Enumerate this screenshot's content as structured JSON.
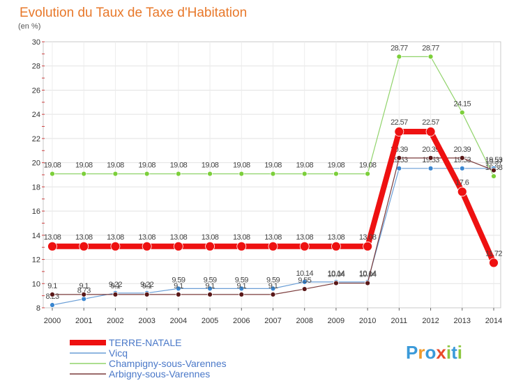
{
  "title": "Evolution du Taux de Taxe d'Habitation",
  "subtitle": "(en %)",
  "logo": {
    "letters": [
      "P",
      "r",
      "o",
      "x",
      "i",
      "t",
      "i"
    ],
    "colors": [
      "#3b9ad9",
      "#f09a2a",
      "#3b9ad9",
      "#e84a2a",
      "#8cc63f",
      "#3b9ad9",
      "#8cc63f"
    ]
  },
  "chart_data": {
    "type": "line",
    "x": [
      "2000",
      "2001",
      "2002",
      "2003",
      "2004",
      "2005",
      "2006",
      "2007",
      "2008",
      "2009",
      "2010",
      "2011",
      "2012",
      "2013",
      "2014"
    ],
    "ylim": [
      8,
      30
    ],
    "yticks": [
      "8",
      "10",
      "12",
      "14",
      "16",
      "18",
      "20",
      "22",
      "24",
      "26",
      "28",
      "30"
    ],
    "grid": true,
    "legend": "bottom-left",
    "series": [
      {
        "name": "Champigny-sous-Varennes",
        "color": "#90d36a",
        "marker": "#7ccf3a",
        "width": 1.2,
        "radius": 3.5,
        "values": [
          19.08,
          19.08,
          19.08,
          19.08,
          19.08,
          19.08,
          19.08,
          19.08,
          19.08,
          19.08,
          19.08,
          28.77,
          28.77,
          24.15,
          18.88
        ],
        "labels": [
          "19.08",
          "19.08",
          "19.08",
          "19.08",
          "19.08",
          "19.08",
          "19.08",
          "19.08",
          "19.08",
          "19.08",
          "19.08",
          "28.77",
          "28.77",
          "24.15",
          "18.88"
        ]
      },
      {
        "name": "Vicq",
        "color": "#6a9ed6",
        "marker": "#3a86d0",
        "width": 1.2,
        "radius": 3.5,
        "values": [
          8.23,
          8.73,
          9.22,
          9.22,
          9.59,
          9.59,
          9.59,
          9.59,
          10.14,
          10.14,
          10.14,
          19.53,
          19.53,
          19.53,
          19.53
        ],
        "labels": [
          "8.23",
          "8.73",
          "9.22",
          "9.22",
          "9.59",
          "9.59",
          "9.59",
          "9.59",
          "10.14",
          "10.14",
          "10.14",
          "19.53",
          "19.53",
          "19.53",
          "19.53"
        ]
      },
      {
        "name": "Arbigny-sous-Varennes",
        "color": "#7a3a3a",
        "marker": "#5a1818",
        "width": 1.2,
        "radius": 3.5,
        "values": [
          9.1,
          9.1,
          9.1,
          9.1,
          9.1,
          9.1,
          9.1,
          9.1,
          9.55,
          10.04,
          10.04,
          20.39,
          20.39,
          20.39,
          19.37
        ],
        "labels": [
          "9.1",
          "9.1",
          "9.1",
          "9.1",
          "9.1",
          "9.1",
          "9.1",
          "9.1",
          "9.55",
          "10.04",
          "10.04",
          "20.39",
          "20.39",
          "20.39",
          "19.37"
        ]
      },
      {
        "name": "TERRE-NATALE",
        "color": "#ee1111",
        "marker": "#ee1111",
        "width": 8,
        "radius": 6.5,
        "values": [
          13.08,
          13.08,
          13.08,
          13.08,
          13.08,
          13.08,
          13.08,
          13.08,
          13.08,
          13.08,
          13.08,
          22.57,
          22.57,
          17.6,
          11.72
        ],
        "labels": [
          "13.08",
          "13.08",
          "13.08",
          "13.08",
          "13.08",
          "13.08",
          "13.08",
          "13.08",
          "13.08",
          "13.08",
          "13.08",
          "22.57",
          "22.57",
          "17.6",
          "11.72"
        ]
      }
    ],
    "legend_order": [
      "TERRE-NATALE",
      "Vicq",
      "Champigny-sous-Varennes",
      "Arbigny-sous-Varennes"
    ]
  }
}
